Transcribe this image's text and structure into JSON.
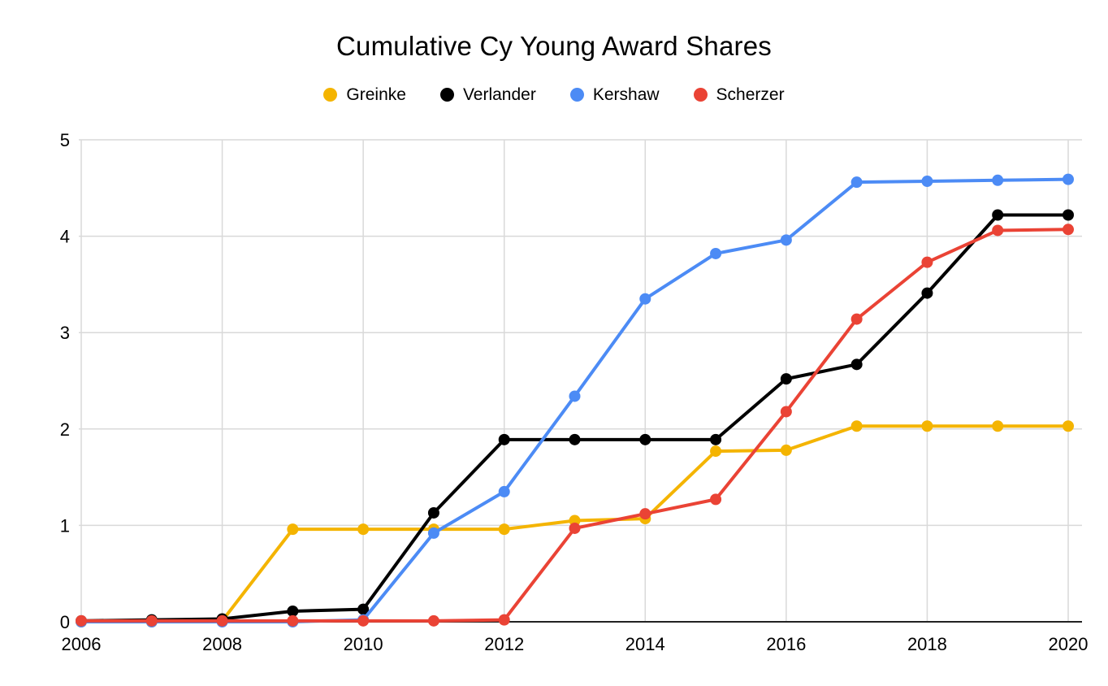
{
  "page": {
    "background": "#ffffff"
  },
  "chart_data": {
    "type": "line",
    "title": "Cumulative Cy Young Award Shares",
    "x": [
      2006,
      2007,
      2008,
      2009,
      2010,
      2011,
      2012,
      2013,
      2014,
      2015,
      2016,
      2017,
      2018,
      2019,
      2020
    ],
    "xlim": [
      2006,
      2020
    ],
    "ylim": [
      0,
      5
    ],
    "y_ticks": [
      0,
      1,
      2,
      3,
      4,
      5
    ],
    "x_tick_labels": [
      2006,
      2008,
      2010,
      2012,
      2014,
      2016,
      2018,
      2020
    ],
    "grid": true,
    "legend_position": "top",
    "grid_color": "#d9d9d9",
    "baseline_color": "#222222",
    "label_color": "#000000",
    "marker_radius": 7,
    "line_width": 4,
    "series": [
      {
        "name": "Greinke",
        "color": "#F4B400",
        "values": [
          0,
          0,
          0.01,
          0.96,
          0.96,
          0.96,
          0.96,
          1.05,
          1.07,
          1.77,
          1.78,
          2.03,
          2.03,
          2.03,
          2.03
        ]
      },
      {
        "name": "Verlander",
        "color": "#000000",
        "values": [
          0.01,
          0.02,
          0.03,
          0.11,
          0.13,
          1.13,
          1.89,
          1.89,
          1.89,
          1.89,
          2.52,
          2.67,
          3.41,
          4.22,
          4.22
        ]
      },
      {
        "name": "Kershaw",
        "color": "#4C8BF5",
        "values": [
          0,
          0,
          0,
          0,
          0.02,
          0.92,
          1.35,
          2.34,
          3.35,
          3.82,
          3.96,
          4.56,
          4.57,
          4.58,
          4.59
        ]
      },
      {
        "name": "Scherzer",
        "color": "#EA4335",
        "values": [
          0.01,
          0.01,
          0.01,
          0.01,
          0.01,
          0.01,
          0.02,
          0.97,
          1.12,
          1.27,
          2.18,
          3.14,
          3.73,
          4.06,
          4.07
        ]
      }
    ]
  }
}
